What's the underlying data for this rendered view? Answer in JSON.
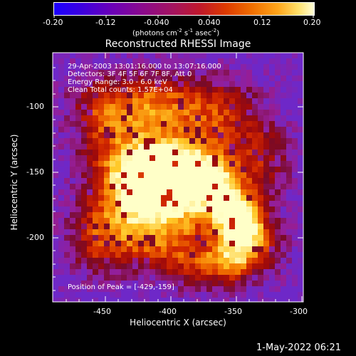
{
  "colorbar": {
    "ticks": [
      "-0.20",
      "-0.12",
      "-0.040",
      "0.040",
      "0.12",
      "0.20"
    ],
    "units_prefix": "(photons cm",
    "units_exp1": "-2",
    "units_mid": " s",
    "units_exp2": "-1",
    "units_mid2": " asec",
    "units_exp3": "-2",
    "units_suffix": ")"
  },
  "plot": {
    "title": "Reconstructed RHESSI Image",
    "xlabel": "Heliocentric X (arcsec)",
    "ylabel": "Heliocentric Y (arcsec)",
    "xticks": [
      "-450",
      "-400",
      "-350",
      "-300"
    ],
    "yticks": [
      "-100",
      "-150",
      "-200"
    ],
    "info_lines": [
      "29-Apr-2003 13:01:16.000 to 13:07:16.000",
      "Detectors: 3F 4F 5F 6F 7F 8F, Att 0",
      "Energy Range: 3.0 - 6.0 keV",
      "Clean     Total counts: 1.57E+04"
    ],
    "peak_label": "Position of Peak = [-429,-159]"
  },
  "footer": {
    "timestamp": "1-May-2022 06:21"
  }
}
